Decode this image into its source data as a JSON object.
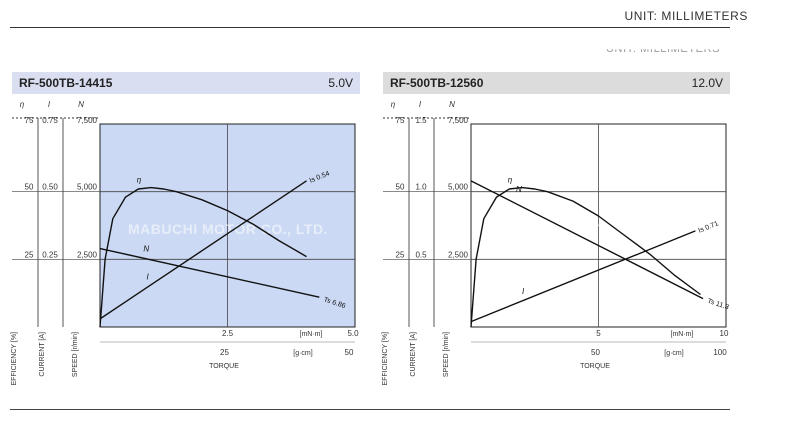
{
  "header": {
    "unit_label": "UNIT: MILLIMETERS",
    "ghost_unit_label": "UNIT: MILLIMETERS"
  },
  "watermark": "MABUCHI MOTOR CO., LTD.",
  "shared": {
    "column_headers": {
      "efficiency": "η",
      "current": "I",
      "speed": "N"
    },
    "axis_titles": {
      "efficiency": "EFFICIENCY [%]",
      "current": "CURRENT [A]",
      "speed": "SPEED [r/min]",
      "torque": "TORQUE"
    },
    "units": {
      "torque_mNm": "[mN·m]",
      "torque_gcm": "[g·cm]"
    }
  },
  "chart_data": [
    {
      "type": "line",
      "model": "RF-500TB-14415",
      "voltage": "5.0V",
      "background": "#cbd9f4",
      "efficiency_ticks": [
        "75",
        "50",
        "25"
      ],
      "current_ticks": [
        "0.75",
        "0.50",
        "0.25"
      ],
      "speed_ticks": [
        "7,500",
        "5,000",
        "2,500"
      ],
      "efficiency_range": [
        0,
        75
      ],
      "current_range": [
        0,
        0.75
      ],
      "speed_range": [
        0,
        7500
      ],
      "torque_mNm_range": [
        0,
        5.0
      ],
      "torque_mNm_ticks": [
        "2.5",
        "5.0"
      ],
      "torque_gcm_ticks": [
        "25",
        "50"
      ],
      "series": [
        {
          "name": "N",
          "x": [
            0,
            4.3
          ],
          "y": [
            2900,
            1100
          ]
        },
        {
          "name": "I",
          "x": [
            0,
            4.05
          ],
          "y": [
            0.03,
            0.54
          ]
        },
        {
          "name": "η",
          "x": [
            0,
            0.1,
            0.25,
            0.5,
            0.75,
            1.0,
            1.25,
            1.5,
            2.0,
            2.5,
            3.0,
            3.5,
            4.05
          ],
          "y": [
            0,
            25,
            40,
            48,
            51,
            51.5,
            51,
            50,
            47,
            43,
            38,
            32,
            26
          ]
        }
      ],
      "annotations": {
        "Is": "Is 0.54",
        "Ts": "Ts 6.86"
      }
    },
    {
      "type": "line",
      "model": "RF-500TB-12560",
      "voltage": "12.0V",
      "background": "#ffffff",
      "efficiency_ticks": [
        "75",
        "50",
        "25"
      ],
      "current_ticks": [
        "1.5",
        "1.0",
        "0.5"
      ],
      "speed_ticks": [
        "7,500",
        "5,000",
        "2,500"
      ],
      "efficiency_range": [
        0,
        75
      ],
      "current_range": [
        0,
        1.5
      ],
      "speed_range": [
        0,
        7500
      ],
      "torque_mNm_range": [
        0,
        10
      ],
      "torque_mNm_ticks": [
        "5",
        "10"
      ],
      "torque_gcm_ticks": [
        "50",
        "100"
      ],
      "series": [
        {
          "name": "N",
          "x": [
            0,
            9.1
          ],
          "y": [
            5400,
            1050
          ]
        },
        {
          "name": "I",
          "x": [
            0,
            8.8
          ],
          "y": [
            0.04,
            0.71
          ]
        },
        {
          "name": "η",
          "x": [
            0,
            0.2,
            0.5,
            1.0,
            1.5,
            2.0,
            2.5,
            3.0,
            4.0,
            5.0,
            6.0,
            7.0,
            8.0,
            9.0
          ],
          "y": [
            0,
            25,
            40,
            48,
            51,
            51.5,
            51,
            50,
            46.5,
            41,
            34,
            27,
            19,
            12
          ]
        }
      ],
      "annotations": {
        "Is": "Is 0.71",
        "Ts": "Ts 11.3"
      }
    }
  ]
}
